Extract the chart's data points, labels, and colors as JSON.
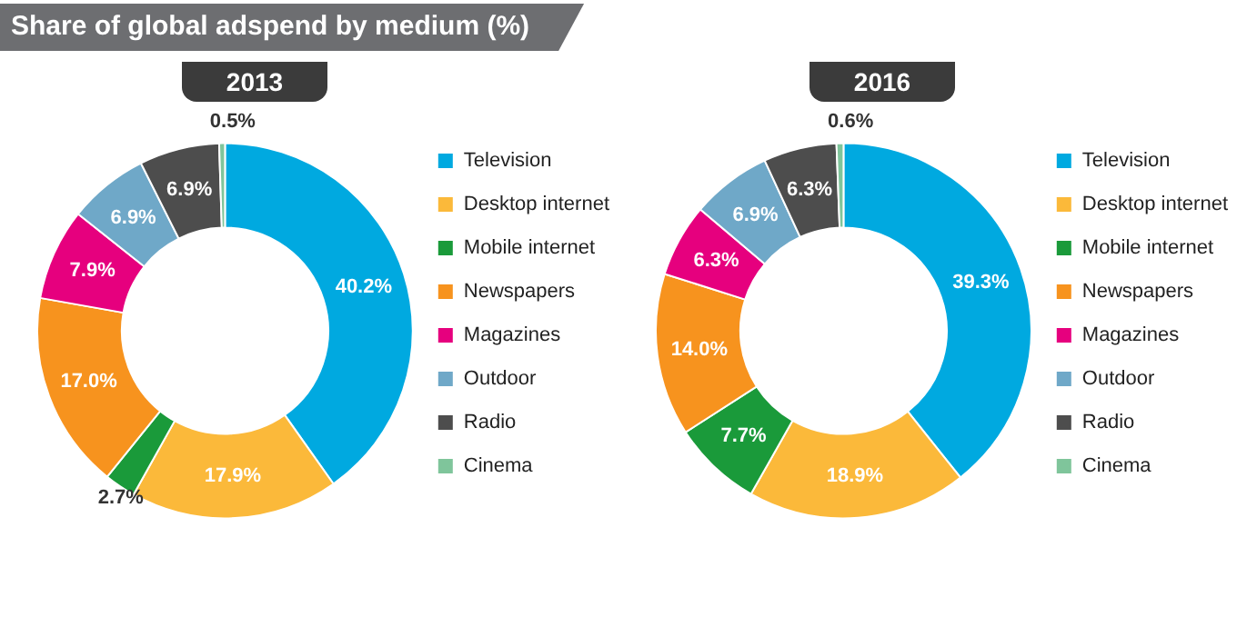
{
  "chart_data": [
    {
      "type": "donut",
      "title": "Share of global adspend by medium (%)",
      "subtitle": "2013",
      "categories": [
        "Television",
        "Desktop internet",
        "Mobile internet",
        "Newspapers",
        "Magazines",
        "Outdoor",
        "Radio",
        "Cinema"
      ],
      "values": [
        40.2,
        17.9,
        2.7,
        17.0,
        7.9,
        6.9,
        6.9,
        0.5
      ],
      "value_labels": [
        "40.2%",
        "17.9%",
        "2.7%",
        "17.0%",
        "7.9%",
        "6.9%",
        "6.9%",
        "0.5%"
      ],
      "colors": [
        "#00a9e0",
        "#fbb93a",
        "#1a9a3a",
        "#f7931e",
        "#e6007e",
        "#6fa8c8",
        "#4d4d4d",
        "#7fc59b"
      ],
      "legend": "right"
    },
    {
      "type": "donut",
      "title": "2016",
      "categories": [
        "Television",
        "Desktop internet",
        "Mobile internet",
        "Newspapers",
        "Magazines",
        "Outdoor",
        "Radio",
        "Cinema"
      ],
      "values": [
        39.3,
        18.9,
        7.7,
        14.0,
        6.3,
        6.9,
        6.3,
        0.6
      ],
      "value_labels": [
        "39.3%",
        "18.9%",
        "7.7%",
        "14.0%",
        "6.3%",
        "6.9%",
        "6.3%",
        "0.6%"
      ],
      "colors": [
        "#00a9e0",
        "#fbb93a",
        "#1a9a3a",
        "#f7931e",
        "#e6007e",
        "#6fa8c8",
        "#4d4d4d",
        "#7fc59b"
      ],
      "legend": "right"
    }
  ]
}
